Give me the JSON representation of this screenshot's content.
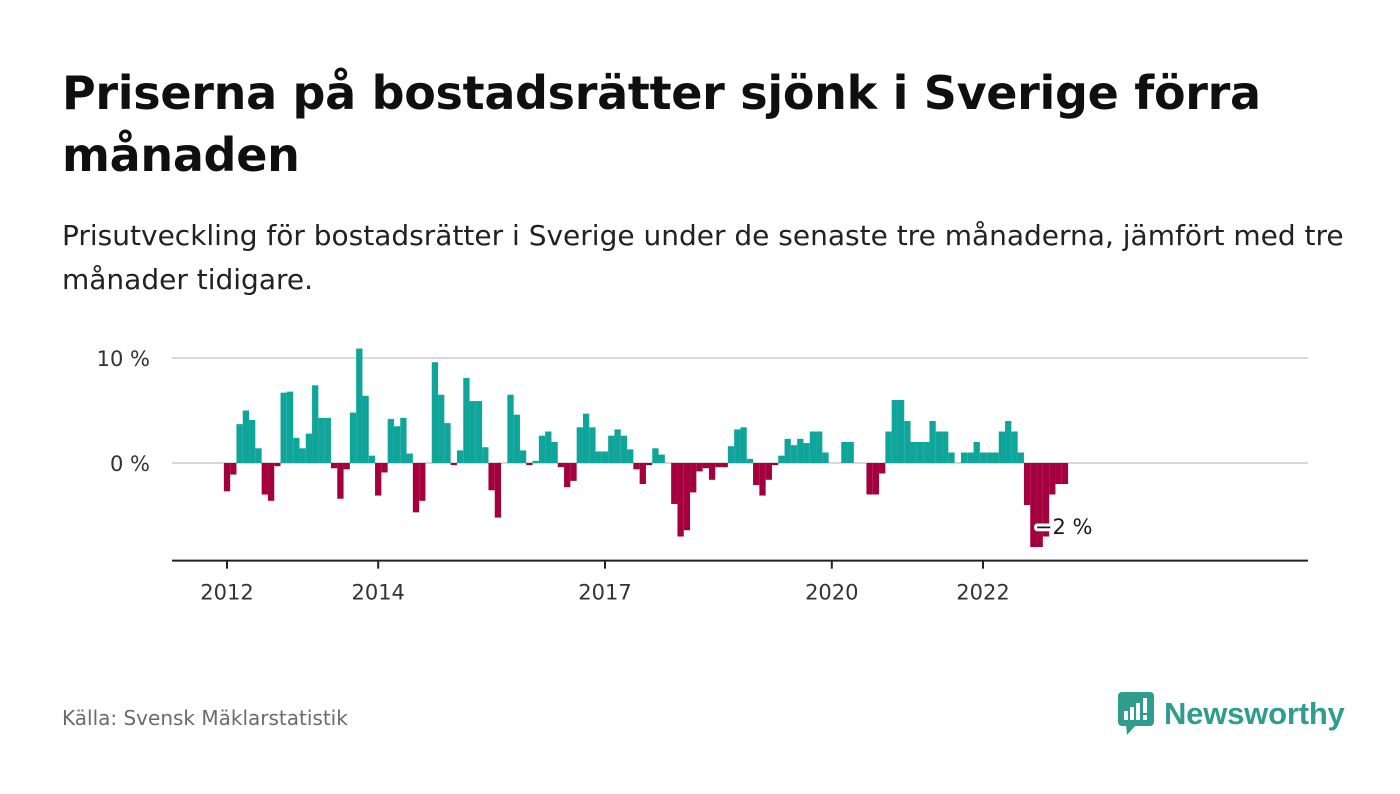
{
  "header": {
    "title": "Priserna på bostadsrätter sjönk i Sverige förra månaden",
    "subtitle": "Prisutveckling för bostadsrätter i Sverige under de senaste tre månaderna, jämfört med tre månader tidigare."
  },
  "footer": {
    "source": "Källa: Svensk Mäklarstatistik",
    "brand": "Newsworthy"
  },
  "colors": {
    "positive": "#10a59a",
    "negative": "#a3003d",
    "grid": "#d9d9d9",
    "axis": "#222222",
    "brand": "#2f9c8e"
  },
  "chart_data": {
    "type": "bar",
    "start_month": "2012-01",
    "ylim": [
      -9.3,
      11
    ],
    "y_ticks": [
      {
        "value": 10,
        "label": "10 %"
      },
      {
        "value": 0,
        "label": "0 %"
      }
    ],
    "x_ticks": [
      {
        "month": "2012-01",
        "label": "2012"
      },
      {
        "month": "2014-01",
        "label": "2014"
      },
      {
        "month": "2017-01",
        "label": "2017"
      },
      {
        "month": "2020-01",
        "label": "2020"
      },
      {
        "month": "2022-01",
        "label": "2022"
      }
    ],
    "grid": true,
    "last_value_label": "−2 %",
    "values": [
      -2.7,
      -1.1,
      3.7,
      5.0,
      4.1,
      1.4,
      -3.0,
      -3.6,
      -0.3,
      6.7,
      6.8,
      2.4,
      1.4,
      2.8,
      7.4,
      4.3,
      4.3,
      -0.5,
      -3.4,
      -0.6,
      4.8,
      10.9,
      6.4,
      0.7,
      -3.1,
      -0.9,
      4.2,
      3.5,
      4.3,
      0.9,
      -4.7,
      -3.6,
      0.0,
      9.6,
      6.5,
      3.8,
      -0.2,
      1.2,
      8.1,
      5.9,
      5.9,
      1.5,
      -2.6,
      -5.2,
      0.0,
      6.5,
      4.6,
      1.2,
      -0.2,
      0.2,
      2.6,
      3.0,
      2.0,
      -0.4,
      -2.3,
      -1.7,
      3.4,
      4.7,
      3.4,
      1.1,
      1.1,
      2.6,
      3.2,
      2.6,
      1.3,
      -0.6,
      -2.0,
      -0.2,
      1.4,
      0.8,
      0.0,
      -3.9,
      -7.0,
      -6.4,
      -2.8,
      -0.8,
      -0.5,
      -1.6,
      -0.4,
      -0.4,
      1.6,
      3.2,
      3.4,
      0.4,
      -2.1,
      -3.1,
      -1.6,
      -0.2,
      0.7,
      2.3,
      1.7,
      2.3,
      1.9,
      3.0,
      3.0,
      1.0,
      0.0,
      0.0,
      2.0,
      2.0,
      0.0,
      0.0,
      -3.0,
      -3.0,
      -1.0,
      3.0,
      6.0,
      6.0,
      4.0,
      2.0,
      2.0,
      2.0,
      4.0,
      3.0,
      3.0,
      1.0,
      0.0,
      1.0,
      1.0,
      2.0,
      1.0,
      1.0,
      1.0,
      3.0,
      4.0,
      3.0,
      1.0,
      -4.0,
      -8.0,
      -8.0,
      -7.0,
      -3.0,
      -2.0,
      -2.0
    ]
  }
}
